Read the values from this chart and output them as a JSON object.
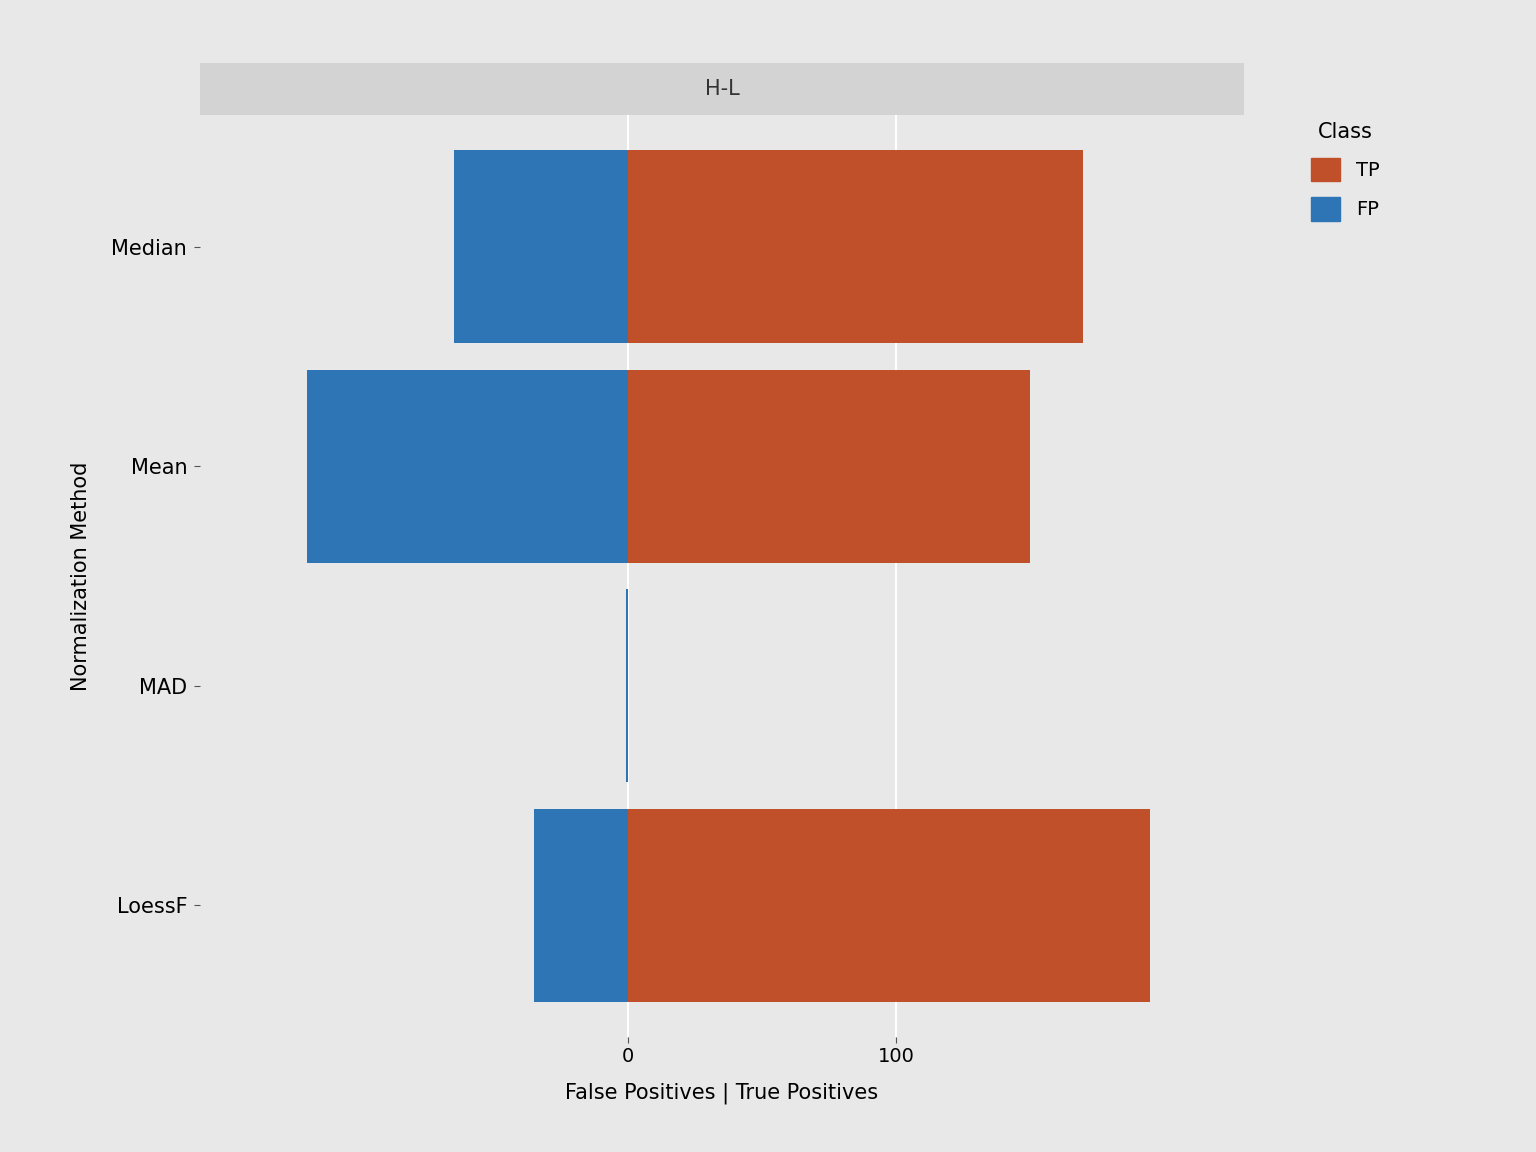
{
  "facet_title": "H-L",
  "methods": [
    "Median",
    "Mean",
    "MAD",
    "LoessF"
  ],
  "fp_values": [
    -65,
    -120,
    -1,
    -35
  ],
  "tp_values": [
    170,
    150,
    0,
    195
  ],
  "fp_color": "#2E75B6",
  "tp_color": "#C0502A",
  "background_color": "#E8E8E8",
  "panel_background": "#E8E8E8",
  "strip_background": "#D3D3D3",
  "xlabel": "False Positives | True Positives",
  "ylabel": "Normalization Method",
  "legend_title": "Class",
  "legend_labels": [
    "TP",
    "FP"
  ],
  "legend_colors": [
    "#C0502A",
    "#2E75B6"
  ],
  "x_ticks": [
    0,
    100
  ],
  "xlim": [
    -160,
    230
  ],
  "bar_height": 0.88
}
